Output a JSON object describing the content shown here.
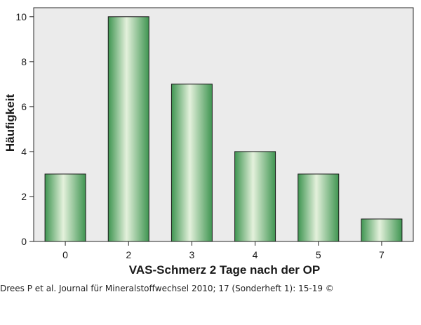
{
  "chart_data": {
    "type": "bar",
    "categories": [
      "0",
      "2",
      "3",
      "4",
      "5",
      "7"
    ],
    "values": [
      3,
      10,
      7,
      4,
      3,
      1
    ],
    "xlabel": "VAS-Schmerz 2 Tage nach der OP",
    "ylabel": "Häufigkeit",
    "ylim": [
      0,
      10.4
    ],
    "yticks": [
      "0",
      "2",
      "4",
      "6",
      "8",
      "10"
    ],
    "grid": false,
    "legend": "none",
    "colors": {
      "plot_background": "#ebebeb",
      "bar_edge": "#1b1b1b",
      "bar_light": "#e4f1dc",
      "bar_dark": "#3f9551"
    }
  },
  "caption": "Drees P et al. Journal für Mineralstoffwechsel 2010; 17 (Sonderheft 1): 15-19 ©"
}
